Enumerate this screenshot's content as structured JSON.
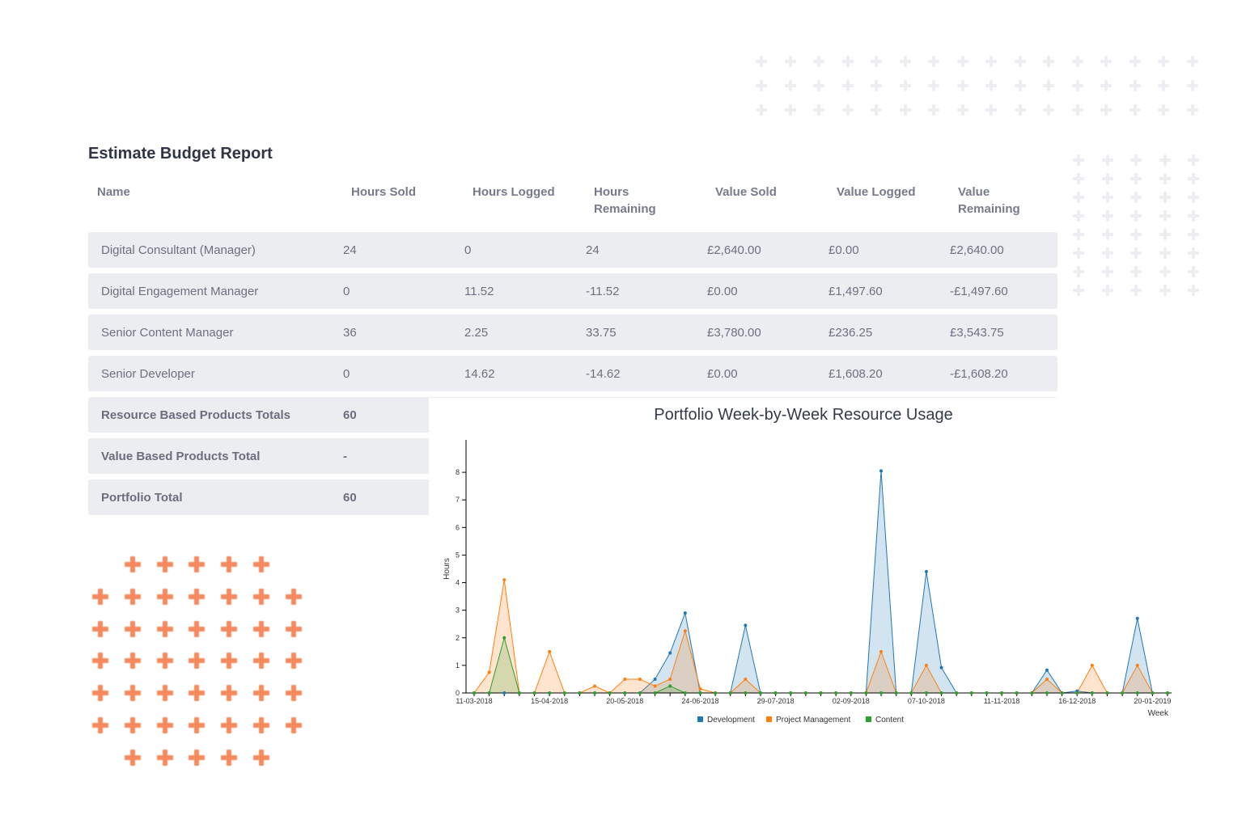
{
  "report": {
    "title": "Estimate Budget Report",
    "columns": [
      "Name",
      "Hours Sold",
      "Hours Logged",
      "Hours Remaining",
      "Value Sold",
      "Value Logged",
      "Value Remaining"
    ],
    "rows": [
      [
        "Digital Consultant (Manager)",
        "24",
        "0",
        "24",
        "£2,640.00",
        "£0.00",
        "£2,640.00"
      ],
      [
        "Digital Engagement Manager",
        "0",
        "11.52",
        "-11.52",
        "£0.00",
        "£1,497.60",
        "-£1,497.60"
      ],
      [
        "Senior Content Manager",
        "36",
        "2.25",
        "33.75",
        "£3,780.00",
        "£236.25",
        "£3,543.75"
      ],
      [
        "Senior Developer",
        "0",
        "14.62",
        "-14.62",
        "£0.00",
        "£1,608.20",
        "-£1,608.20"
      ]
    ],
    "totals": [
      [
        "Resource Based Products Totals",
        "60"
      ],
      [
        "Value Based Products Total",
        "-"
      ],
      [
        "Portfolio Total",
        "60"
      ]
    ]
  },
  "chart_data": {
    "type": "area",
    "title": "Portfolio Week-by-Week Resource Usage",
    "xlabel": "Week",
    "ylabel": "Hours",
    "ylim": [
      0,
      9
    ],
    "yticks": [
      0,
      1,
      2,
      3,
      4,
      5,
      6,
      7,
      8
    ],
    "xtick_labels": [
      "11-03-2018",
      "15-04-2018",
      "20-05-2018",
      "24-06-2018",
      "29-07-2018",
      "02-09-2018",
      "07-10-2018",
      "11-11-2018",
      "16-12-2018",
      "20-01-2019"
    ],
    "x_weeks": [
      "11-03-2018",
      "18-03-2018",
      "25-03-2018",
      "01-04-2018",
      "08-04-2018",
      "15-04-2018",
      "22-04-2018",
      "29-04-2018",
      "06-05-2018",
      "13-05-2018",
      "20-05-2018",
      "27-05-2018",
      "03-06-2018",
      "10-06-2018",
      "17-06-2018",
      "24-06-2018",
      "01-07-2018",
      "08-07-2018",
      "15-07-2018",
      "22-07-2018",
      "29-07-2018",
      "05-08-2018",
      "12-08-2018",
      "19-08-2018",
      "26-08-2018",
      "02-09-2018",
      "09-09-2018",
      "16-09-2018",
      "23-09-2018",
      "30-09-2018",
      "07-10-2018",
      "14-10-2018",
      "21-10-2018",
      "28-10-2018",
      "04-11-2018",
      "11-11-2018",
      "18-11-2018",
      "25-11-2018",
      "02-12-2018",
      "09-12-2018",
      "16-12-2018",
      "23-12-2018",
      "30-12-2018",
      "06-01-2019",
      "13-01-2019",
      "20-01-2019",
      "27-01-2019"
    ],
    "series": [
      {
        "name": "Development",
        "color": "#1f77b4",
        "values": [
          0,
          0,
          0,
          0,
          0,
          0,
          0,
          0,
          0,
          0,
          0,
          0,
          0.5,
          1.45,
          2.9,
          0,
          0,
          0,
          2.45,
          0,
          0,
          0,
          0,
          0,
          0,
          0,
          0,
          8.05,
          0,
          0,
          4.4,
          0.92,
          0,
          0,
          0,
          0,
          0,
          0,
          0.83,
          0,
          0.07,
          0,
          0,
          0,
          2.7,
          0,
          0
        ]
      },
      {
        "name": "Project Management",
        "color": "#ff7f0e",
        "values": [
          0,
          0.75,
          4.1,
          0,
          0,
          1.5,
          0,
          0,
          0.25,
          0,
          0.5,
          0.5,
          0.25,
          0.5,
          2.25,
          0.15,
          0,
          0,
          0.5,
          0,
          0,
          0,
          0,
          0,
          0,
          0,
          0,
          1.5,
          0,
          0,
          1.0,
          0,
          0,
          0,
          0,
          0,
          0,
          0,
          0.5,
          0,
          0,
          1.0,
          0,
          0,
          1.0,
          0,
          0
        ]
      },
      {
        "name": "Content",
        "color": "#2ca02c",
        "values": [
          0,
          0,
          2.0,
          0,
          0,
          0,
          0,
          0,
          0,
          0,
          0,
          0,
          0,
          0.25,
          0,
          0,
          0,
          0,
          0,
          0,
          0,
          0,
          0,
          0,
          0,
          0,
          0,
          0,
          0,
          0,
          0,
          0,
          0,
          0,
          0,
          0,
          0,
          0,
          0,
          0,
          0,
          0,
          0,
          0,
          0,
          0,
          0
        ]
      }
    ],
    "legend_position": "bottom"
  }
}
